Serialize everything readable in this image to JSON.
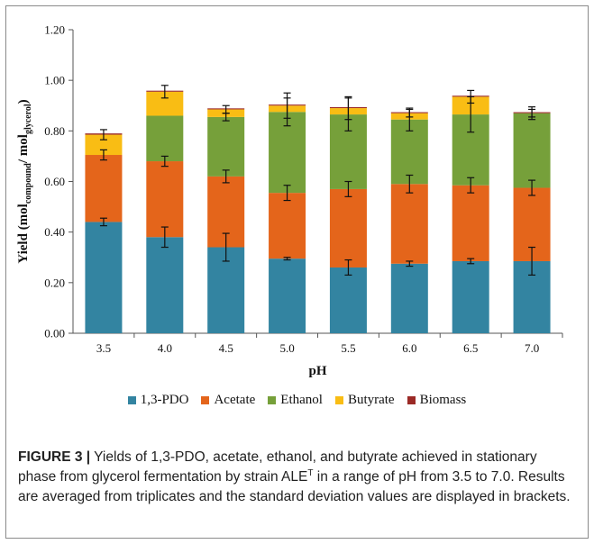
{
  "chart_data": {
    "type": "bar",
    "stacked": true,
    "categories": [
      "3.5",
      "4.0",
      "4.5",
      "5.0",
      "5.5",
      "6.0",
      "6.5",
      "7.0"
    ],
    "series": [
      {
        "name": "1,3-PDO",
        "color": "#3384a1",
        "values": [
          0.44,
          0.38,
          0.34,
          0.295,
          0.26,
          0.275,
          0.285,
          0.285
        ],
        "error": [
          0.015,
          0.04,
          0.055,
          0.005,
          0.03,
          0.01,
          0.01,
          0.055
        ]
      },
      {
        "name": "Acetate",
        "color": "#e4651b",
        "values": [
          0.265,
          0.3,
          0.28,
          0.26,
          0.31,
          0.315,
          0.3,
          0.29
        ],
        "error": [
          0.02,
          0.02,
          0.025,
          0.03,
          0.03,
          0.035,
          0.03,
          0.03
        ]
      },
      {
        "name": "Ethanol",
        "color": "#76a03a",
        "values": [
          0.0,
          0.18,
          0.235,
          0.32,
          0.295,
          0.255,
          0.28,
          0.295
        ],
        "error": [
          0.0,
          0.0,
          0.015,
          0.055,
          0.065,
          0.045,
          0.07,
          0.015
        ]
      },
      {
        "name": "Butyrate",
        "color": "#f9bd14",
        "values": [
          0.08,
          0.095,
          0.03,
          0.025,
          0.025,
          0.025,
          0.07,
          0.0
        ],
        "error": [
          0.02,
          0.025,
          0.015,
          0.05,
          0.045,
          0.015,
          0.025,
          0.025
        ]
      },
      {
        "name": "Biomass",
        "color": "#9b2a26",
        "values": [
          0.005,
          0.004,
          0.004,
          0.004,
          0.004,
          0.004,
          0.004,
          0.004
        ],
        "error": [
          0,
          0,
          0,
          0,
          0,
          0,
          0,
          0
        ]
      }
    ],
    "xlabel": "pH",
    "ylabel": {
      "main": "Yield (mol",
      "sub1": "compound",
      "mid": "/ mol",
      "sub2": "glycerol",
      "end": ")"
    },
    "ylim": [
      0,
      1.2
    ],
    "yticks": [
      "0.00",
      "0.20",
      "0.40",
      "0.60",
      "0.80",
      "1.00",
      "1.20"
    ],
    "legend_position": "bottom",
    "grid": false
  },
  "caption": {
    "label": "FIGURE 3 |",
    "text_before_sup": " Yields of 1,3-PDO, acetate, ethanol, and butyrate achieved in stationary phase from glycerol fermentation by strain ALE",
    "sup": "T",
    "text_after_sup": " in a range of pH from 3.5 to 7.0. Results are averaged from triplicates and the standard deviation values are displayed in brackets."
  }
}
